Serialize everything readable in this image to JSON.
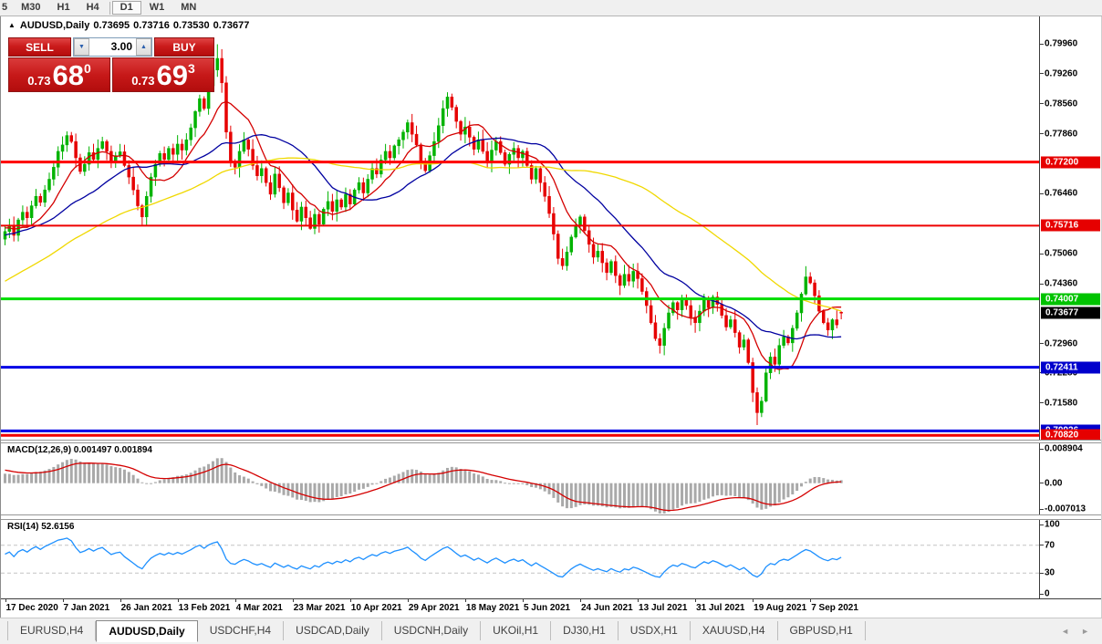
{
  "toolbar": {
    "timeframes": [
      {
        "label": "5",
        "active": false
      },
      {
        "label": "M30",
        "active": false
      },
      {
        "label": "H1",
        "active": false
      },
      {
        "label": "H4",
        "active": false
      },
      {
        "label": "D1",
        "active": true
      },
      {
        "label": "W1",
        "active": false
      },
      {
        "label": "MN",
        "active": false
      }
    ]
  },
  "chart_header": {
    "collapse_icon": "▲",
    "title": "AUDUSD,Daily",
    "open": "0.73695",
    "high": "0.73716",
    "low": "0.73530",
    "close": "0.73677"
  },
  "trade_panel": {
    "sell_label": "SELL",
    "buy_label": "BUY",
    "volume": "3.00",
    "spinner_down": "▼",
    "spinner_up": "▲",
    "sell_price": {
      "prefix": "0.73",
      "main": "68",
      "sup": "0"
    },
    "buy_price": {
      "prefix": "0.73",
      "main": "69",
      "sup": "3"
    }
  },
  "panes": {
    "macd_label": "MACD(12,26,9) 0.001497 0.001894",
    "rsi_label": "RSI(14) 52.6156"
  },
  "axis": {
    "price_ticks": [
      0.7996,
      0.7926,
      0.7856,
      0.7786,
      0.7646,
      0.7506,
      0.7436,
      0.7296,
      0.7228,
      0.7158
    ],
    "price_tick_labels": [
      "0.79960",
      "0.79260",
      "0.78560",
      "0.77860",
      "0.76460",
      "0.75060",
      "0.74360",
      "0.72960",
      "0.72280",
      "0.71580"
    ],
    "price_badges": [
      {
        "text": "0.77200",
        "price": 0.772,
        "color": "#e60000"
      },
      {
        "text": "0.75716",
        "price": 0.75716,
        "color": "#e60000"
      },
      {
        "text": "0.74007",
        "price": 0.74007,
        "color": "#00c300"
      },
      {
        "text": "0.72411",
        "price": 0.72411,
        "color": "#0000cc"
      },
      {
        "text": "0.70926",
        "price": 0.70926,
        "color": "#0000cc"
      },
      {
        "text": "0.70820",
        "price": 0.7082,
        "color": "#e60000"
      },
      {
        "text": "0.73677",
        "price": 0.73677,
        "color": "#000000"
      }
    ],
    "macd_ticks": [
      "0.008904",
      "0.00",
      "-0.007013"
    ],
    "rsi_ticks": [
      {
        "label": "100",
        "value": 100
      },
      {
        "label": "70",
        "value": 70
      },
      {
        "label": "30",
        "value": 30
      },
      {
        "label": "0",
        "value": 0
      }
    ],
    "dates": [
      "17 Dec 2020",
      "7 Jan 2021",
      "26 Jan 2021",
      "13 Feb 2021",
      "4 Mar 2021",
      "23 Mar 2021",
      "10 Apr 2021",
      "29 Apr 2021",
      "18 May 2021",
      "5 Jun 2021",
      "24 Jun 2021",
      "13 Jul 2021",
      "31 Jul 2021",
      "19 Aug 2021",
      "7 Sep 2021"
    ]
  },
  "tabs": {
    "items": [
      {
        "label": "EURUSD,H4",
        "active": false
      },
      {
        "label": "AUDUSD,Daily",
        "active": true
      },
      {
        "label": "USDCHF,H4",
        "active": false
      },
      {
        "label": "USDCAD,Daily",
        "active": false
      },
      {
        "label": "USDCNH,Daily",
        "active": false
      },
      {
        "label": "UKOil,H1",
        "active": false
      },
      {
        "label": "DJ30,H1",
        "active": false
      },
      {
        "label": "USDX,H1",
        "active": false
      },
      {
        "label": "XAUUSD,H4",
        "active": false
      },
      {
        "label": "GBPUSD,H1",
        "active": false
      }
    ],
    "scroll_left": "◄",
    "scroll_right": "►"
  },
  "chart_data": {
    "type": "candlestick",
    "symbol": "AUDUSD",
    "timeframe": "Daily",
    "current_bar": {
      "open": 0.73695,
      "high": 0.73716,
      "low": 0.7353,
      "close": 0.73677
    },
    "ylim": [
      0.7072,
      0.806
    ],
    "bar_step": 4.85,
    "bar_x0": 4.5,
    "up_color": "#00b300",
    "down_color": "#e60000",
    "x_label_indices": [
      0,
      13,
      26,
      39,
      52,
      65,
      78,
      91,
      104,
      117,
      130,
      143,
      156,
      169,
      182
    ],
    "prehistory": [
      0.7185,
      0.721,
      0.7195,
      0.7228,
      0.7252,
      0.724,
      0.7268,
      0.7285,
      0.727,
      0.7295,
      0.7312,
      0.73,
      0.7328,
      0.7342,
      0.733,
      0.7352,
      0.7368,
      0.7355,
      0.7378,
      0.7392,
      0.738,
      0.74,
      0.7415,
      0.7402,
      0.7422,
      0.7438,
      0.7425,
      0.7445,
      0.7458,
      0.7442,
      0.7462,
      0.7475,
      0.746,
      0.748,
      0.7495,
      0.7482,
      0.7502,
      0.7515,
      0.75,
      0.7518,
      0.7532,
      0.752,
      0.7538,
      0.755,
      0.7535,
      0.7552,
      0.7565,
      0.7548,
      0.7562,
      0.7575,
      0.7558,
      0.757,
      0.7582,
      0.7565,
      0.7578,
      0.759,
      0.7572,
      0.756,
      0.7548,
      0.754
    ],
    "closes": [
      0.7558,
      0.7572,
      0.7549,
      0.7585,
      0.7603,
      0.759,
      0.7618,
      0.764,
      0.7626,
      0.7655,
      0.768,
      0.7708,
      0.7745,
      0.776,
      0.7782,
      0.7768,
      0.773,
      0.7698,
      0.7715,
      0.7742,
      0.7726,
      0.7752,
      0.7768,
      0.7745,
      0.772,
      0.7735,
      0.7744,
      0.7712,
      0.7685,
      0.7655,
      0.7618,
      0.7592,
      0.764,
      0.7685,
      0.7715,
      0.774,
      0.7726,
      0.7752,
      0.7738,
      0.7762,
      0.7748,
      0.7772,
      0.78,
      0.7838,
      0.7868,
      0.7845,
      0.7898,
      0.7935,
      0.7962,
      0.7905,
      0.779,
      0.7722,
      0.7708,
      0.7745,
      0.7772,
      0.775,
      0.7712,
      0.7688,
      0.7705,
      0.7672,
      0.7645,
      0.7692,
      0.766,
      0.7625,
      0.7648,
      0.7608,
      0.7582,
      0.7615,
      0.759,
      0.7565,
      0.7598,
      0.7575,
      0.761,
      0.7628,
      0.7605,
      0.7632,
      0.7615,
      0.7645,
      0.7622,
      0.7655,
      0.7672,
      0.7648,
      0.768,
      0.7705,
      0.7692,
      0.7725,
      0.7745,
      0.773,
      0.7758,
      0.7772,
      0.779,
      0.7812,
      0.7785,
      0.776,
      0.7722,
      0.77,
      0.7735,
      0.7768,
      0.7805,
      0.7845,
      0.7872,
      0.7848,
      0.7815,
      0.7785,
      0.7802,
      0.7778,
      0.775,
      0.7772,
      0.7745,
      0.772,
      0.7748,
      0.7768,
      0.7742,
      0.7715,
      0.7738,
      0.7752,
      0.773,
      0.7745,
      0.7712,
      0.768,
      0.7705,
      0.7672,
      0.764,
      0.76,
      0.7552,
      0.7495,
      0.7478,
      0.751,
      0.7545,
      0.7572,
      0.7592,
      0.756,
      0.7528,
      0.7498,
      0.7512,
      0.7485,
      0.7462,
      0.7488,
      0.7455,
      0.7432,
      0.7458,
      0.7442,
      0.7465,
      0.7448,
      0.7418,
      0.7385,
      0.7345,
      0.7308,
      0.7292,
      0.7332,
      0.7368,
      0.7392,
      0.7375,
      0.7402,
      0.7385,
      0.7358,
      0.7345,
      0.7372,
      0.7398,
      0.738,
      0.7405,
      0.7388,
      0.7362,
      0.7335,
      0.7352,
      0.7322,
      0.7288,
      0.7305,
      0.7252,
      0.7182,
      0.7135,
      0.7162,
      0.7228,
      0.7265,
      0.7248,
      0.7292,
      0.7312,
      0.7298,
      0.7332,
      0.7368,
      0.7412,
      0.7452,
      0.7438,
      0.7408,
      0.7372,
      0.7345,
      0.7328,
      0.7352,
      0.734,
      0.73677
    ],
    "wick_seed": 11,
    "wick_amplitude": 0.0021,
    "overrides": {
      "48": {
        "high": 0.7995
      },
      "170": {
        "low": 0.7106
      },
      "181": {
        "high": 0.7477
      },
      "189": {
        "open": 0.73695,
        "high": 0.73716,
        "low": 0.7353
      }
    },
    "moving_averages": [
      {
        "period": 10,
        "color": "#d40000"
      },
      {
        "period": 25,
        "color": "#0000a0"
      },
      {
        "period": 60,
        "color": "#f0d800"
      }
    ],
    "hlines": [
      {
        "price": 0.772,
        "color": "#ff0000",
        "width": 3
      },
      {
        "price": 0.75716,
        "color": "#ee0000",
        "width": 2
      },
      {
        "price": 0.74007,
        "color": "#00dd00",
        "width": 3
      },
      {
        "price": 0.72411,
        "color": "#0000e6",
        "width": 3
      },
      {
        "price": 0.70926,
        "color": "#0000e6",
        "width": 3
      },
      {
        "price": 0.7082,
        "color": "#f00000",
        "width": 3
      }
    ],
    "macd": {
      "fast": 12,
      "slow": 26,
      "signal": 9,
      "range": [
        -0.0077,
        0.0098
      ],
      "bar_color": "#a9a9a9",
      "signal_color": "#d40000",
      "current": 0.001497,
      "current_signal": 0.001894
    },
    "rsi": {
      "period": 14,
      "levels": [
        30,
        70
      ],
      "color": "#1e90ff",
      "current": 52.6156,
      "range": [
        0,
        100
      ],
      "level_color": "#c4c4c4"
    }
  }
}
